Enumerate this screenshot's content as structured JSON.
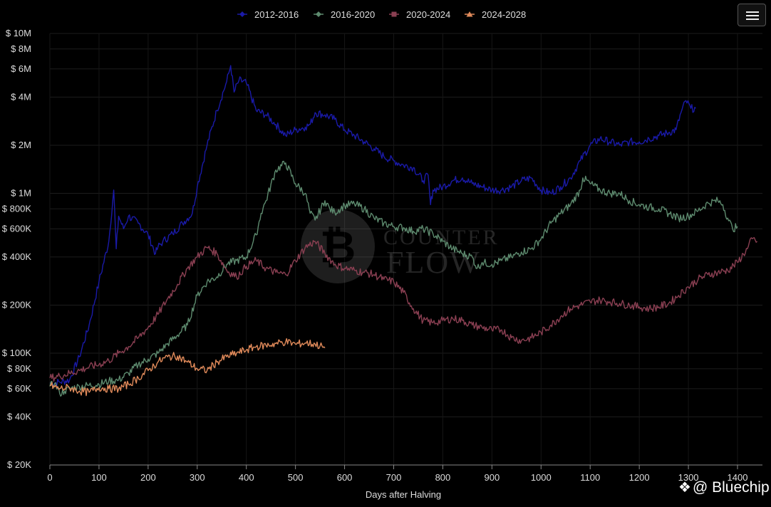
{
  "chart_data": {
    "type": "line",
    "xlabel": "Days after Halving",
    "ylabel": "",
    "y_scale": "log",
    "xlim": [
      0,
      1440
    ],
    "ylim": [
      20000,
      10000000
    ],
    "x_ticks": [
      0,
      100,
      200,
      300,
      400,
      500,
      600,
      700,
      800,
      900,
      1000,
      1100,
      1200,
      1300,
      1400
    ],
    "y_ticks": [
      {
        "value": 10000000,
        "label": "$ 10M"
      },
      {
        "value": 8000000,
        "label": "$ 8M"
      },
      {
        "value": 6000000,
        "label": "$ 6M"
      },
      {
        "value": 4000000,
        "label": "$ 4M"
      },
      {
        "value": 2000000,
        "label": "$ 2M"
      },
      {
        "value": 1000000,
        "label": "$ 1M"
      },
      {
        "value": 800000,
        "label": "$ 800K"
      },
      {
        "value": 600000,
        "label": "$ 600K"
      },
      {
        "value": 400000,
        "label": "$ 400K"
      },
      {
        "value": 200000,
        "label": "$ 200K"
      },
      {
        "value": 100000,
        "label": "$ 100K"
      },
      {
        "value": 80000,
        "label": "$ 80K"
      },
      {
        "value": 60000,
        "label": "$ 60K"
      },
      {
        "value": 40000,
        "label": "$ 40K"
      },
      {
        "value": 20000,
        "label": "$ 20K"
      }
    ],
    "grid": true,
    "legend_position": "top-center",
    "series": [
      {
        "name": "2012-2016",
        "color": "#1a1aa8",
        "marker": "diamond",
        "x": [
          0,
          20,
          40,
          60,
          80,
          100,
          120,
          130,
          135,
          140,
          150,
          160,
          180,
          200,
          215,
          220,
          230,
          250,
          270,
          290,
          300,
          320,
          340,
          360,
          368,
          375,
          385,
          400,
          420,
          440,
          460,
          480,
          500,
          520,
          530,
          540,
          560,
          580,
          600,
          620,
          640,
          660,
          680,
          700,
          720,
          740,
          760,
          770,
          775,
          780,
          800,
          820,
          840,
          860,
          880,
          900,
          920,
          940,
          960,
          980,
          1000,
          1020,
          1040,
          1060,
          1080,
          1100,
          1120,
          1140,
          1160,
          1180,
          1200,
          1220,
          1240,
          1260,
          1275,
          1285,
          1295,
          1305,
          1315
        ],
        "y": [
          65000,
          66000,
          68000,
          95000,
          150000,
          280000,
          500000,
          1050000,
          450000,
          720000,
          600000,
          720000,
          650000,
          550000,
          420000,
          460000,
          500000,
          560000,
          650000,
          750000,
          1100000,
          2000000,
          3300000,
          5000000,
          6300000,
          4300000,
          5100000,
          4900000,
          3300000,
          3100000,
          2700000,
          2300000,
          2500000,
          2600000,
          2700000,
          3200000,
          3100000,
          2900000,
          2500000,
          2300000,
          2100000,
          1900000,
          1700000,
          1600000,
          1500000,
          1450000,
          1200000,
          1300000,
          850000,
          1050000,
          1100000,
          1200000,
          1250000,
          1150000,
          1100000,
          1050000,
          1050000,
          1100000,
          1200000,
          1250000,
          1050000,
          1000000,
          1100000,
          1250000,
          1600000,
          2000000,
          2200000,
          2100000,
          2000000,
          2100000,
          2100000,
          2200000,
          2300000,
          2400000,
          2500000,
          3200000,
          3800000,
          3400000,
          3400000
        ]
      },
      {
        "name": "2016-2020",
        "color": "#5d8a6e",
        "marker": "diamond",
        "x": [
          0,
          10,
          20,
          30,
          40,
          60,
          80,
          100,
          120,
          140,
          160,
          180,
          200,
          220,
          240,
          260,
          280,
          300,
          320,
          340,
          360,
          380,
          400,
          420,
          430,
          440,
          460,
          480,
          500,
          520,
          530,
          540,
          560,
          570,
          580,
          600,
          620,
          640,
          660,
          680,
          700,
          720,
          740,
          760,
          780,
          800,
          820,
          840,
          860,
          870,
          880,
          900,
          920,
          940,
          960,
          980,
          1000,
          1020,
          1040,
          1060,
          1080,
          1085,
          1100,
          1120,
          1140,
          1160,
          1180,
          1200,
          1220,
          1240,
          1260,
          1280,
          1300,
          1320,
          1340,
          1360,
          1370,
          1380,
          1390,
          1400
        ],
        "y": [
          62000,
          65000,
          56000,
          58000,
          60000,
          62000,
          63000,
          64000,
          67000,
          68000,
          75000,
          85000,
          92000,
          100000,
          115000,
          130000,
          150000,
          230000,
          280000,
          300000,
          360000,
          380000,
          400000,
          550000,
          750000,
          900000,
          1400000,
          1550000,
          1150000,
          1000000,
          750000,
          680000,
          900000,
          800000,
          760000,
          840000,
          860000,
          800000,
          700000,
          650000,
          620000,
          610000,
          580000,
          600000,
          560000,
          500000,
          450000,
          420000,
          400000,
          340000,
          370000,
          360000,
          380000,
          400000,
          430000,
          450000,
          520000,
          650000,
          750000,
          850000,
          1050000,
          1250000,
          1150000,
          1050000,
          1000000,
          1000000,
          900000,
          850000,
          820000,
          800000,
          750000,
          700000,
          720000,
          780000,
          870000,
          900000,
          850000,
          700000,
          600000,
          620000
        ]
      },
      {
        "name": "2020-2024",
        "color": "#8a3f52",
        "marker": "square",
        "x": [
          0,
          20,
          40,
          60,
          80,
          100,
          120,
          140,
          160,
          180,
          200,
          220,
          240,
          260,
          280,
          300,
          320,
          340,
          360,
          380,
          400,
          420,
          440,
          460,
          480,
          500,
          520,
          540,
          560,
          580,
          600,
          620,
          640,
          660,
          680,
          700,
          720,
          740,
          760,
          780,
          800,
          820,
          840,
          860,
          880,
          900,
          920,
          940,
          960,
          980,
          1000,
          1020,
          1040,
          1060,
          1080,
          1100,
          1120,
          1140,
          1160,
          1180,
          1200,
          1220,
          1240,
          1260,
          1280,
          1300,
          1320,
          1340,
          1360,
          1380,
          1400,
          1420,
          1430,
          1440
        ],
        "y": [
          70000,
          72000,
          75000,
          78000,
          82000,
          85000,
          90000,
          100000,
          110000,
          125000,
          145000,
          175000,
          220000,
          270000,
          340000,
          400000,
          460000,
          420000,
          330000,
          300000,
          350000,
          380000,
          340000,
          320000,
          310000,
          380000,
          460000,
          500000,
          420000,
          360000,
          340000,
          330000,
          320000,
          310000,
          290000,
          280000,
          240000,
          190000,
          160000,
          155000,
          160000,
          165000,
          160000,
          150000,
          145000,
          140000,
          140000,
          125000,
          120000,
          125000,
          135000,
          150000,
          170000,
          190000,
          200000,
          210000,
          215000,
          210000,
          205000,
          200000,
          195000,
          190000,
          195000,
          205000,
          230000,
          260000,
          290000,
          310000,
          320000,
          330000,
          370000,
          450000,
          520000,
          500000
        ]
      },
      {
        "name": "2024-2028",
        "color": "#e08a5a",
        "marker": "triangle",
        "x": [
          0,
          20,
          40,
          60,
          80,
          100,
          120,
          140,
          160,
          180,
          200,
          220,
          240,
          260,
          280,
          300,
          320,
          340,
          360,
          380,
          400,
          420,
          440,
          460,
          480,
          500,
          520,
          540,
          560
        ],
        "y": [
          63000,
          60000,
          61000,
          58000,
          57000,
          61000,
          60000,
          60000,
          64000,
          70000,
          78000,
          88000,
          95000,
          96000,
          88000,
          80000,
          78000,
          88000,
          95000,
          100000,
          105000,
          110000,
          112000,
          115000,
          118000,
          114000,
          116000,
          114000,
          108000
        ]
      }
    ]
  },
  "watermark": {
    "brand": "COUNTER FLOW",
    "credit": "@ Bluechip"
  },
  "menu": {
    "icon": "hamburger-menu-icon"
  }
}
